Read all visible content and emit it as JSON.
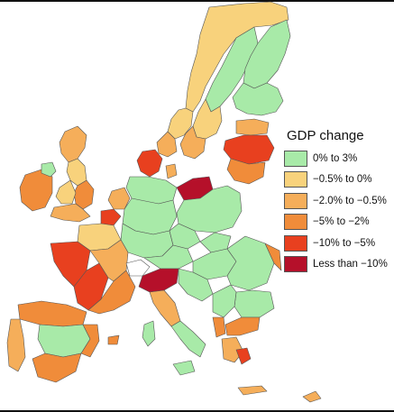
{
  "legend": {
    "title": "GDP change",
    "items": [
      {
        "label": "0% to 3%",
        "color": "#a8eaa8"
      },
      {
        "label": "−0.5% to 0%",
        "color": "#f8d27c"
      },
      {
        "label": "−2.0% to −0.5%",
        "color": "#f5ae5a"
      },
      {
        "label": "−5% to −2%",
        "color": "#f08c3a"
      },
      {
        "label": "−10% to −5%",
        "color": "#e8401f"
      },
      {
        "label": "Less than −10%",
        "color": "#b5102a"
      }
    ]
  },
  "colors": {
    "land_default": "#a8eaa8",
    "border": "#555555",
    "frame": "#111111"
  }
}
